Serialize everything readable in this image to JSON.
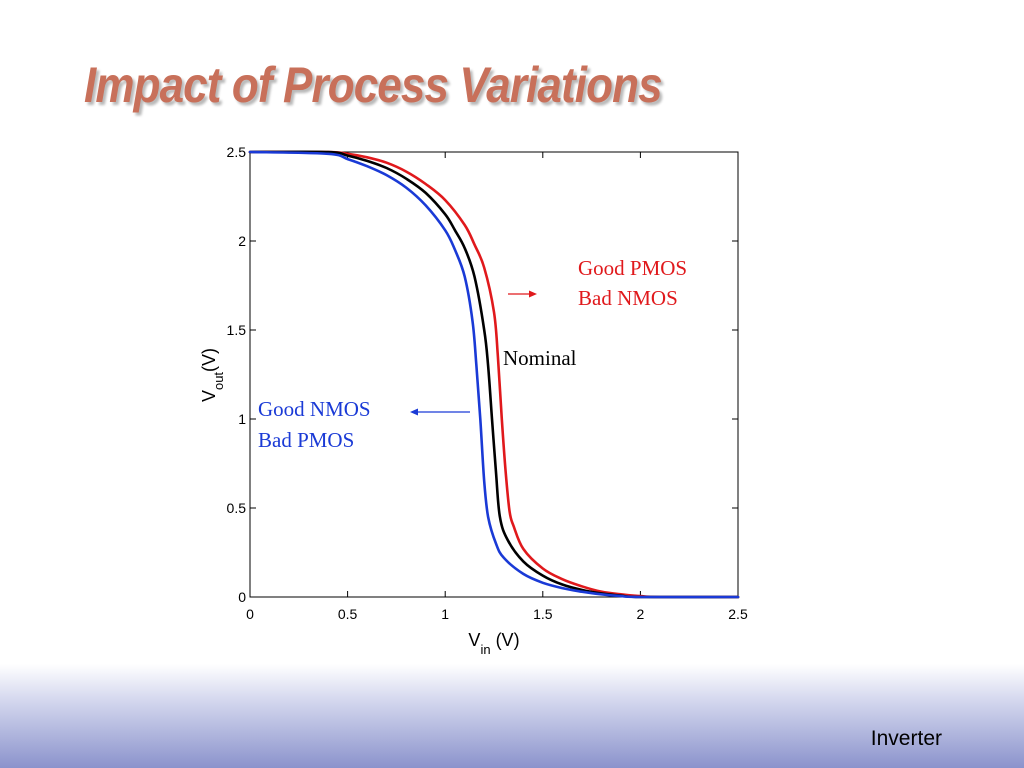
{
  "slide": {
    "title": "Impact of Process Variations",
    "footer": "Inverter"
  },
  "colors": {
    "title": "#c8705a",
    "good_pmos_bad_nmos": "#e0191c",
    "nominal": "#000000",
    "good_nmos_bad_pmos": "#1a3ad6"
  },
  "chart_data": {
    "type": "line",
    "xlabel": {
      "main": "V",
      "sub": "in",
      "rest": " (V)"
    },
    "ylabel": {
      "main": "V",
      "sub": "out",
      "rest": "(V)"
    },
    "xlim": [
      0,
      2.5
    ],
    "ylim": [
      0,
      2.5
    ],
    "xticks": [
      "0",
      "0.5",
      "1",
      "1.5",
      "2",
      "2.5"
    ],
    "yticks": [
      "0",
      "0.5",
      "1",
      "1.5",
      "2",
      "2.5"
    ],
    "grid": false,
    "annotations": [
      {
        "lines": [
          "Good PMOS",
          "Bad NMOS"
        ],
        "color": "#e0191c",
        "arrow": "right"
      },
      {
        "lines": [
          "Nominal"
        ],
        "color": "#000000",
        "arrow": "none"
      },
      {
        "lines": [
          "Good NMOS",
          "Bad PMOS"
        ],
        "color": "#1a3ad6",
        "arrow": "left"
      }
    ],
    "series": [
      {
        "color": "#e0191c",
        "x": [
          0,
          0.4,
          0.5,
          0.6,
          0.7,
          0.8,
          0.9,
          1.0,
          1.1,
          1.15,
          1.2,
          1.25,
          1.27,
          1.29,
          1.31,
          1.33,
          1.35,
          1.4,
          1.5,
          1.6,
          1.7,
          1.8,
          1.9,
          2.0,
          2.1,
          2.5
        ],
        "y": [
          2.5,
          2.5,
          2.49,
          2.47,
          2.44,
          2.39,
          2.32,
          2.23,
          2.09,
          1.98,
          1.85,
          1.6,
          1.35,
          1.0,
          0.7,
          0.48,
          0.4,
          0.27,
          0.16,
          0.1,
          0.06,
          0.03,
          0.015,
          0.005,
          0.0,
          0.0
        ]
      },
      {
        "color": "#000000",
        "x": [
          0,
          0.4,
          0.5,
          0.6,
          0.7,
          0.8,
          0.9,
          1.0,
          1.05,
          1.1,
          1.15,
          1.2,
          1.22,
          1.24,
          1.26,
          1.28,
          1.32,
          1.4,
          1.5,
          1.6,
          1.7,
          1.8,
          1.9,
          2.0,
          2.5
        ],
        "y": [
          2.5,
          2.5,
          2.48,
          2.45,
          2.41,
          2.35,
          2.27,
          2.15,
          2.06,
          1.96,
          1.8,
          1.5,
          1.3,
          1.0,
          0.7,
          0.45,
          0.32,
          0.2,
          0.12,
          0.07,
          0.04,
          0.02,
          0.008,
          0.0,
          0.0
        ]
      },
      {
        "color": "#1a3ad6",
        "x": [
          0,
          0.4,
          0.5,
          0.6,
          0.7,
          0.8,
          0.9,
          1.0,
          1.05,
          1.1,
          1.14,
          1.16,
          1.18,
          1.2,
          1.22,
          1.26,
          1.3,
          1.4,
          1.5,
          1.6,
          1.7,
          1.8,
          1.9,
          2.0,
          2.5
        ],
        "y": [
          2.5,
          2.49,
          2.46,
          2.42,
          2.37,
          2.3,
          2.2,
          2.06,
          1.95,
          1.8,
          1.55,
          1.3,
          1.0,
          0.65,
          0.45,
          0.3,
          0.22,
          0.13,
          0.08,
          0.05,
          0.03,
          0.015,
          0.005,
          0.0,
          0.0
        ]
      }
    ]
  }
}
